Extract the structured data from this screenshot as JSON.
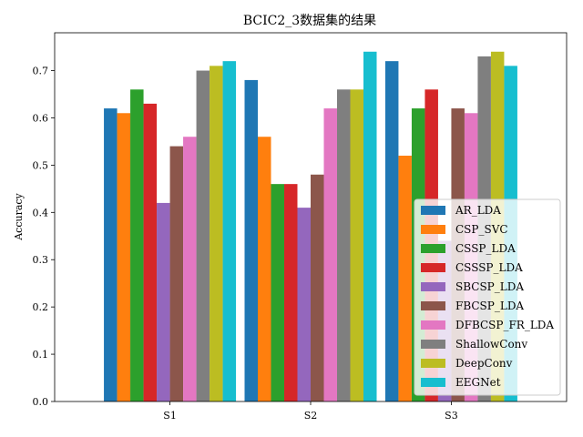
{
  "chart_data": {
    "type": "bar",
    "title": "BCIC2_3数据集的结果",
    "xlabel": "",
    "ylabel": "Accuracy",
    "ylim": [
      0,
      0.78
    ],
    "yticks": [
      "0.0",
      "0.1",
      "0.2",
      "0.3",
      "0.4",
      "0.5",
      "0.6",
      "0.7"
    ],
    "grid": false,
    "legend_position": "lower-right",
    "categories": [
      "S1",
      "S2",
      "S3"
    ],
    "series": [
      {
        "name": "AR_LDA",
        "color": "#1f77b4",
        "values": [
          0.62,
          0.68,
          0.72
        ]
      },
      {
        "name": "CSP_SVC",
        "color": "#ff7f0e",
        "values": [
          0.61,
          0.56,
          0.52
        ]
      },
      {
        "name": "CSSP_LDA",
        "color": "#2ca02c",
        "values": [
          0.66,
          0.46,
          0.62
        ]
      },
      {
        "name": "CSSSP_LDA",
        "color": "#d62728",
        "values": [
          0.63,
          0.46,
          0.66
        ]
      },
      {
        "name": "SBCSP_LDA",
        "color": "#9467bd",
        "values": [
          0.42,
          0.41,
          0.34
        ]
      },
      {
        "name": "FBCSP_LDA",
        "color": "#8c564b",
        "values": [
          0.54,
          0.48,
          0.62
        ]
      },
      {
        "name": "DFBCSP_FR_LDA",
        "color": "#e377c2",
        "values": [
          0.56,
          0.62,
          0.61
        ]
      },
      {
        "name": "ShallowConv",
        "color": "#7f7f7f",
        "values": [
          0.7,
          0.66,
          0.73
        ]
      },
      {
        "name": "DeepConv",
        "color": "#bcbd22",
        "values": [
          0.71,
          0.66,
          0.74
        ]
      },
      {
        "name": "EEGNet",
        "color": "#17becf",
        "values": [
          0.72,
          0.74,
          0.71
        ]
      }
    ]
  }
}
